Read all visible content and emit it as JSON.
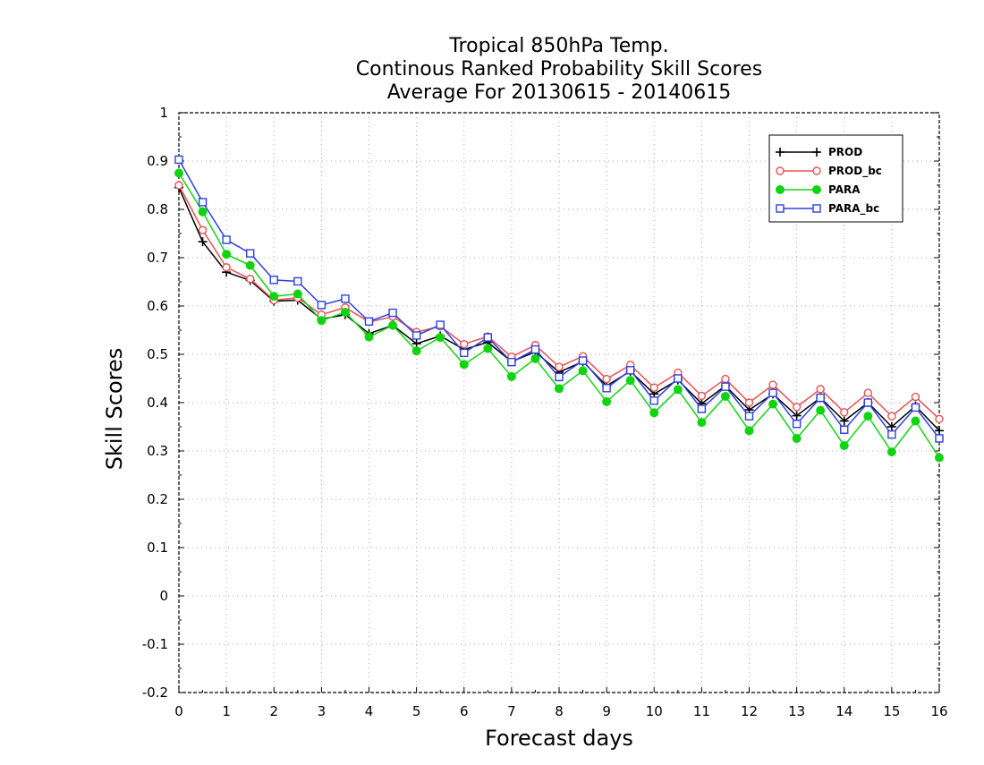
{
  "chart_data": {
    "type": "line",
    "title": [
      "Tropical 850hPa Temp.",
      "Continous Ranked Probability Skill Scores",
      "Average For 20130615 - 20140615"
    ],
    "xlabel": "Forecast days",
    "ylabel": "Skill Scores",
    "xlim": [
      0,
      16
    ],
    "ylim": [
      -0.2,
      1
    ],
    "xticks": [
      "0",
      "1",
      "2",
      "3",
      "4",
      "5",
      "6",
      "7",
      "8",
      "9",
      "10",
      "11",
      "12",
      "13",
      "14",
      "15",
      "16"
    ],
    "yticks": [
      "-0.2",
      "-0.1",
      "0",
      "0.1",
      "0.2",
      "0.3",
      "0.4",
      "0.5",
      "0.6",
      "0.7",
      "0.8",
      "0.9",
      "1"
    ],
    "grid": true,
    "legend_position": "top-right",
    "x": [
      0,
      0.5,
      1,
      1.5,
      2,
      2.5,
      3,
      3.5,
      4,
      4.5,
      5,
      5.5,
      6,
      6.5,
      7,
      7.5,
      8,
      8.5,
      9,
      9.5,
      10,
      10.5,
      11,
      11.5,
      12,
      12.5,
      13,
      13.5,
      14,
      14.5,
      15,
      15.5,
      16
    ],
    "series": [
      {
        "name": "PROD",
        "color": "#000000",
        "marker": "plus",
        "values": [
          0.845,
          0.733,
          0.67,
          0.653,
          0.61,
          0.612,
          0.573,
          0.582,
          0.543,
          0.56,
          0.522,
          0.538,
          0.51,
          0.525,
          0.485,
          0.505,
          0.463,
          0.485,
          0.435,
          0.465,
          0.418,
          0.447,
          0.398,
          0.435,
          0.385,
          0.418,
          0.373,
          0.41,
          0.362,
          0.4,
          0.35,
          0.393,
          0.342
        ]
      },
      {
        "name": "PROD_bc",
        "color": "#e85050",
        "marker": "open-circle",
        "values": [
          0.85,
          0.757,
          0.68,
          0.656,
          0.612,
          0.617,
          0.582,
          0.597,
          0.567,
          0.578,
          0.546,
          0.558,
          0.521,
          0.537,
          0.495,
          0.519,
          0.474,
          0.496,
          0.449,
          0.478,
          0.431,
          0.462,
          0.414,
          0.449,
          0.4,
          0.437,
          0.391,
          0.428,
          0.38,
          0.42,
          0.372,
          0.412,
          0.366
        ]
      },
      {
        "name": "PARA",
        "color": "#11d411",
        "marker": "filled-circle",
        "values": [
          0.875,
          0.795,
          0.707,
          0.684,
          0.62,
          0.625,
          0.57,
          0.587,
          0.536,
          0.56,
          0.507,
          0.535,
          0.479,
          0.512,
          0.454,
          0.491,
          0.429,
          0.466,
          0.402,
          0.446,
          0.379,
          0.427,
          0.359,
          0.413,
          0.342,
          0.397,
          0.326,
          0.384,
          0.311,
          0.372,
          0.298,
          0.362,
          0.286
        ]
      },
      {
        "name": "PARA_bc",
        "color": "#2d3fe0",
        "marker": "open-square",
        "values": [
          0.903,
          0.815,
          0.737,
          0.709,
          0.654,
          0.651,
          0.602,
          0.615,
          0.568,
          0.586,
          0.539,
          0.561,
          0.503,
          0.535,
          0.484,
          0.51,
          0.453,
          0.487,
          0.43,
          0.467,
          0.404,
          0.45,
          0.387,
          0.433,
          0.372,
          0.42,
          0.356,
          0.41,
          0.344,
          0.4,
          0.334,
          0.39,
          0.326
        ]
      }
    ]
  }
}
